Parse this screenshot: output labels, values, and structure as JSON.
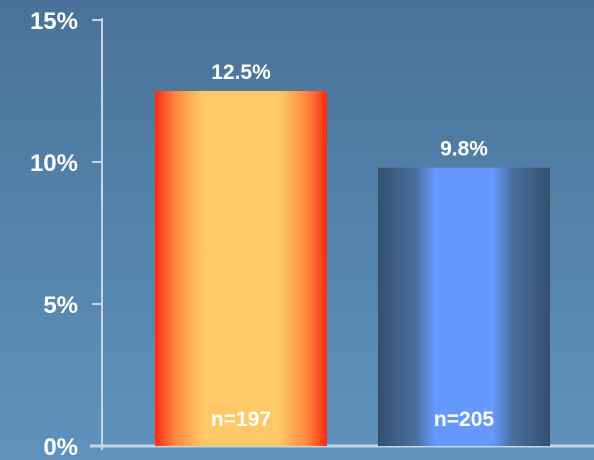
{
  "chart_data": {
    "type": "bar",
    "categories": [
      "",
      ""
    ],
    "values": [
      12.5,
      9.8
    ],
    "value_labels": [
      "12.5%",
      "9.8%"
    ],
    "n_labels": [
      "n=197",
      "n=205"
    ],
    "ylim": [
      0,
      15
    ],
    "yticks": [
      0,
      5,
      10,
      15
    ],
    "ytick_labels": [
      "0%",
      "5%",
      "10%",
      "15%"
    ],
    "grid": false,
    "colors": {
      "bar1_edge": "#ff2a10",
      "bar1_mid": "#ff8a40",
      "bar1_center": "#ffc866",
      "bar2_edge": "#34506e",
      "bar2_mid": "#4a6fa0",
      "bar2_center": "#6699ff",
      "axis": "#c8d4e0",
      "text": "#ffffff"
    }
  }
}
